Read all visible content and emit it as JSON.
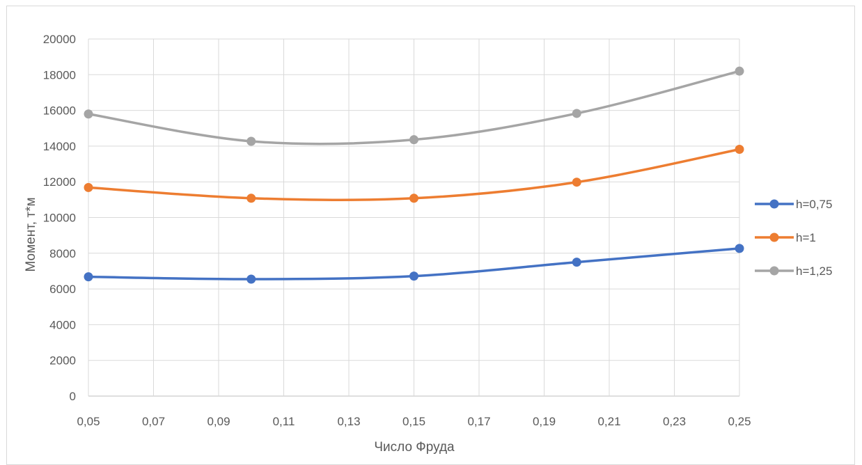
{
  "chart_data": {
    "type": "line",
    "title": "",
    "xlabel": "Число Фруда",
    "ylabel": "Момент, т*м",
    "xlim": [
      0.05,
      0.25
    ],
    "ylim": [
      0,
      20000
    ],
    "x_ticks": [
      "0,05",
      "0,07",
      "0,09",
      "0,11",
      "0,13",
      "0,15",
      "0,17",
      "0,19",
      "0,21",
      "0,23",
      "0,25"
    ],
    "y_ticks": [
      "0",
      "2000",
      "4000",
      "6000",
      "8000",
      "10000",
      "12000",
      "14000",
      "16000",
      "18000",
      "20000"
    ],
    "grid": true,
    "smooth": true,
    "legend_position": "right",
    "x": [
      0.05,
      0.1,
      0.15,
      0.2,
      0.25
    ],
    "series": [
      {
        "name": "h=0,75",
        "color": "#4472c4",
        "values": [
          6680,
          6550,
          6720,
          7500,
          8270
        ]
      },
      {
        "name": "h=1",
        "color": "#ed7d31",
        "values": [
          11680,
          11080,
          11080,
          11980,
          13820
        ]
      },
      {
        "name": "h=1,25",
        "color": "#a5a5a5",
        "values": [
          15800,
          14270,
          14360,
          15830,
          18200
        ]
      }
    ]
  }
}
